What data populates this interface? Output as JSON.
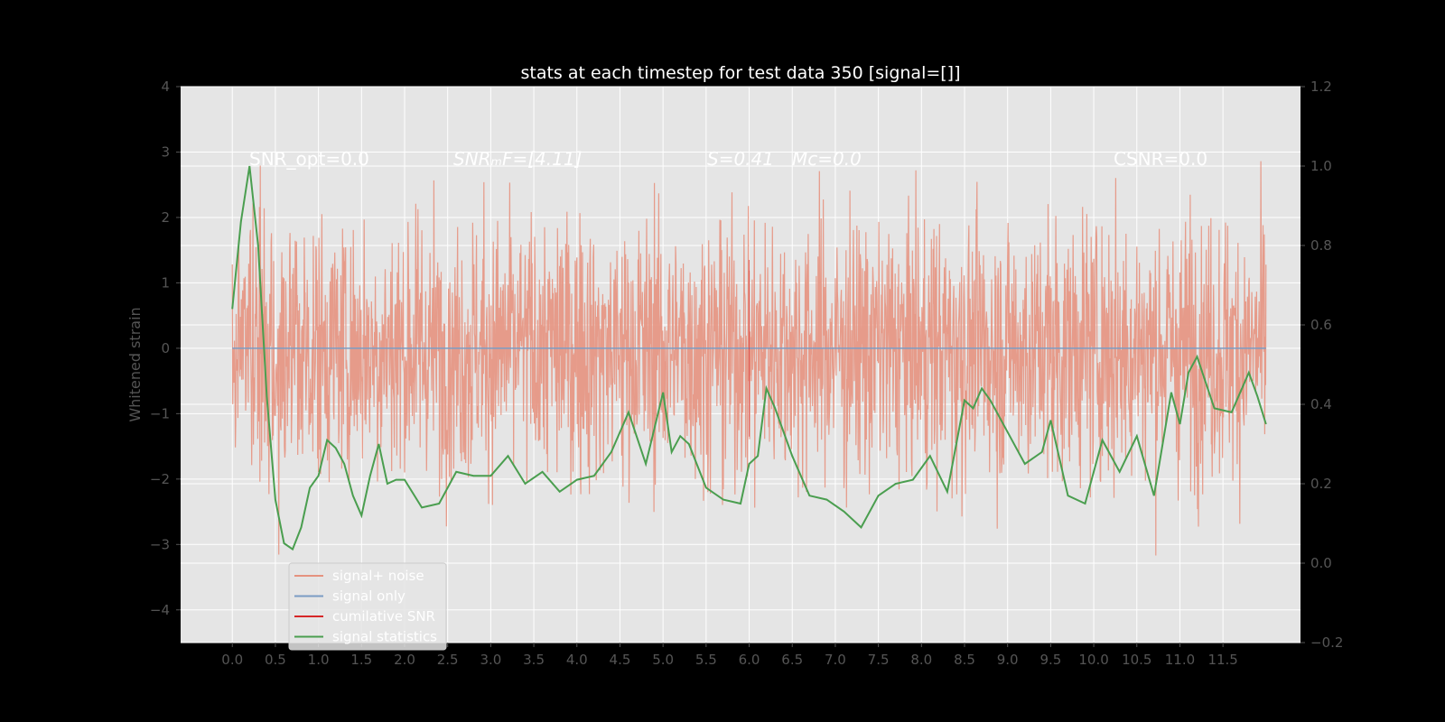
{
  "chart_data": {
    "type": "line",
    "title": "stats at each timestep for test data 350 [signal=[]]",
    "xlabel": "",
    "ylabel": "Whitened strain",
    "xlim": [
      -0.6,
      12.4
    ],
    "ylim": [
      -4.5,
      4.0
    ],
    "y2lim": [
      -0.2,
      1.2
    ],
    "xticks": [
      "0.0",
      "0.5",
      "1.0",
      "1.5",
      "2.0",
      "2.5",
      "3.0",
      "3.5",
      "4.0",
      "4.5",
      "5.0",
      "5.5",
      "6.0",
      "6.5",
      "7.0",
      "7.5",
      "8.0",
      "8.5",
      "9.0",
      "9.5",
      "10.0",
      "10.5",
      "11.0",
      "11.5"
    ],
    "yticks": [
      "4",
      "3",
      "2",
      "1",
      "0",
      "−1",
      "−2",
      "−3",
      "−4"
    ],
    "y2ticks": [
      "1.2",
      "1.0",
      "0.8",
      "0.6",
      "0.4",
      "0.2",
      "0.0",
      "−0.2"
    ],
    "grid": true,
    "legend_position": "lower-left",
    "annotations": [
      "SNR_opt=0.0",
      "SNRₘF=[4.11]",
      "S=0.41",
      "Mᴄ=0.0",
      "CSNR=0.0"
    ],
    "series": [
      {
        "name": "signal+ noise",
        "color": "#e5927f",
        "noise_sigma": 1.0,
        "x_range": [
          0.0,
          12.0
        ],
        "y_range": [
          -4.1,
          3.65
        ]
      },
      {
        "name": "signal only",
        "color": "#7a9cc4",
        "x": [
          0.0,
          12.0
        ],
        "values": [
          0.0,
          0.0
        ]
      },
      {
        "name": "cumilative SNR",
        "color": "#d62728",
        "x": [
          6.0,
          6.0
        ],
        "values": [
          -1.35,
          1.35
        ]
      },
      {
        "name": "signal statistics",
        "axis": "right",
        "color": "#4a9e4f",
        "x": [
          0.0,
          0.1,
          0.2,
          0.3,
          0.4,
          0.5,
          0.6,
          0.7,
          0.8,
          0.9,
          1.0,
          1.1,
          1.2,
          1.3,
          1.4,
          1.5,
          1.6,
          1.7,
          1.8,
          1.9,
          2.0,
          2.2,
          2.4,
          2.6,
          2.8,
          3.0,
          3.2,
          3.4,
          3.6,
          3.8,
          4.0,
          4.2,
          4.4,
          4.6,
          4.8,
          5.0,
          5.1,
          5.2,
          5.3,
          5.5,
          5.7,
          5.9,
          6.0,
          6.1,
          6.2,
          6.3,
          6.5,
          6.7,
          6.9,
          7.1,
          7.3,
          7.5,
          7.7,
          7.9,
          8.1,
          8.3,
          8.5,
          8.6,
          8.7,
          8.8,
          9.0,
          9.2,
          9.4,
          9.5,
          9.7,
          9.9,
          10.1,
          10.3,
          10.5,
          10.7,
          10.9,
          11.0,
          11.1,
          11.2,
          11.4,
          11.6,
          11.8,
          11.9,
          12.0
        ],
        "values": [
          0.64,
          0.86,
          1.0,
          0.8,
          0.42,
          0.16,
          0.05,
          0.035,
          0.09,
          0.19,
          0.22,
          0.31,
          0.29,
          0.25,
          0.17,
          0.12,
          0.22,
          0.3,
          0.2,
          0.21,
          0.21,
          0.14,
          0.15,
          0.23,
          0.22,
          0.22,
          0.27,
          0.2,
          0.23,
          0.18,
          0.21,
          0.22,
          0.28,
          0.38,
          0.25,
          0.43,
          0.28,
          0.32,
          0.3,
          0.19,
          0.16,
          0.15,
          0.25,
          0.27,
          0.44,
          0.39,
          0.27,
          0.17,
          0.16,
          0.13,
          0.09,
          0.17,
          0.2,
          0.21,
          0.27,
          0.18,
          0.41,
          0.39,
          0.44,
          0.41,
          0.33,
          0.25,
          0.28,
          0.36,
          0.17,
          0.15,
          0.31,
          0.23,
          0.32,
          0.17,
          0.43,
          0.35,
          0.48,
          0.52,
          0.39,
          0.38,
          0.48,
          0.42,
          0.35
        ]
      }
    ]
  }
}
